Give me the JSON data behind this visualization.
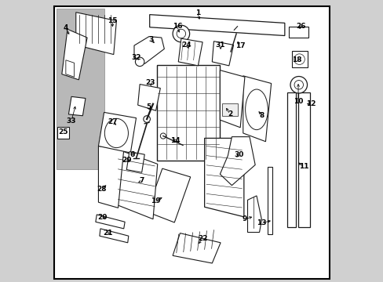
{
  "bg_color": "#d0d0d0",
  "border_color": "#000000",
  "line_color": "#1a1a1a",
  "label_color": "#000000",
  "labels_data": [
    [
      1,
      0.52,
      0.955,
      0.53,
      0.925
    ],
    [
      2,
      0.635,
      0.595,
      0.618,
      0.625
    ],
    [
      3,
      0.355,
      0.862,
      0.372,
      0.842
    ],
    [
      4,
      0.052,
      0.902,
      0.068,
      0.872
    ],
    [
      5,
      0.345,
      0.622,
      0.358,
      0.602
    ],
    [
      6,
      0.288,
      0.452,
      0.308,
      0.462
    ],
    [
      7,
      0.322,
      0.358,
      0.302,
      0.348
    ],
    [
      8,
      0.748,
      0.592,
      0.732,
      0.612
    ],
    [
      9,
      0.688,
      0.222,
      0.722,
      0.232
    ],
    [
      10,
      0.878,
      0.642,
      0.878,
      0.712
    ],
    [
      11,
      0.898,
      0.408,
      0.872,
      0.428
    ],
    [
      12,
      0.922,
      0.632,
      0.908,
      0.632
    ],
    [
      13,
      0.748,
      0.208,
      0.788,
      0.218
    ],
    [
      14,
      0.442,
      0.502,
      0.428,
      0.512
    ],
    [
      15,
      0.218,
      0.928,
      0.218,
      0.898
    ],
    [
      16,
      0.448,
      0.908,
      0.458,
      0.878
    ],
    [
      17,
      0.672,
      0.838,
      0.658,
      0.862
    ],
    [
      18,
      0.872,
      0.788,
      0.878,
      0.792
    ],
    [
      19,
      0.372,
      0.288,
      0.402,
      0.302
    ],
    [
      20,
      0.182,
      0.228,
      0.202,
      0.226
    ],
    [
      21,
      0.202,
      0.172,
      0.218,
      0.172
    ],
    [
      22,
      0.538,
      0.152,
      0.518,
      0.128
    ],
    [
      23,
      0.352,
      0.708,
      0.358,
      0.688
    ],
    [
      24,
      0.482,
      0.842,
      0.492,
      0.822
    ],
    [
      25,
      0.042,
      0.532,
      0.042,
      0.532
    ],
    [
      26,
      0.888,
      0.908,
      0.878,
      0.892
    ],
    [
      27,
      0.218,
      0.568,
      0.238,
      0.552
    ],
    [
      28,
      0.178,
      0.328,
      0.202,
      0.348
    ],
    [
      29,
      0.268,
      0.432,
      0.288,
      0.432
    ],
    [
      30,
      0.668,
      0.452,
      0.658,
      0.442
    ],
    [
      31,
      0.602,
      0.842,
      0.602,
      0.818
    ],
    [
      32,
      0.302,
      0.798,
      0.312,
      0.788
    ],
    [
      33,
      0.072,
      0.572,
      0.088,
      0.632
    ]
  ]
}
